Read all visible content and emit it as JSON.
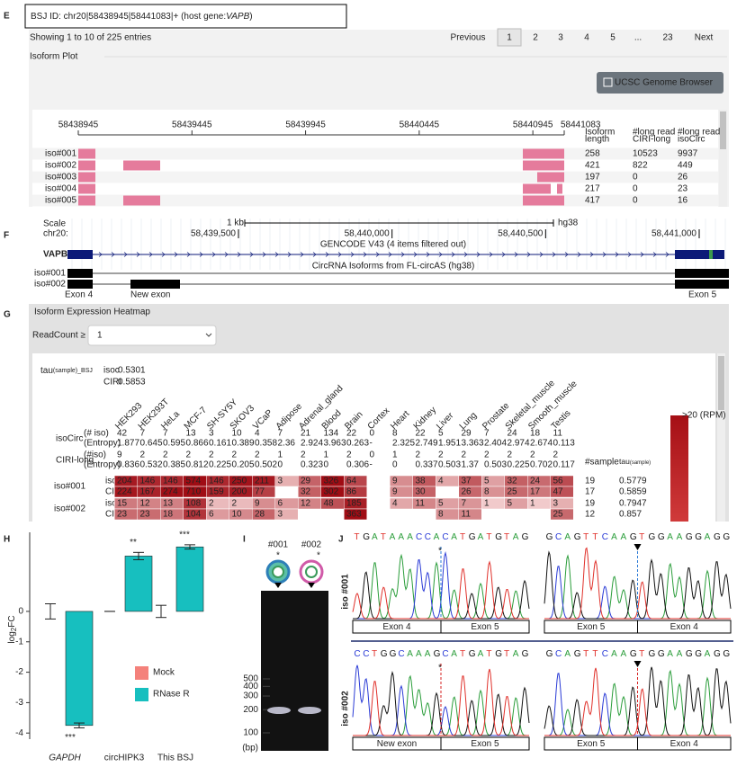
{
  "panel_labels": [
    "E",
    "F",
    "G",
    "H",
    "I",
    "J"
  ],
  "isoform_browser": {
    "bsj_id": [
      "BSJ ID: chr20|58438945|58441083|+ (host gene:",
      "VAPB",
      ")"
    ],
    "entries_info": "Showing 1 to 10 of 225 entries",
    "pagination": [
      "Previous",
      "1",
      "2",
      "3",
      "4",
      "5",
      "...",
      "23",
      "Next"
    ],
    "plot_title": "Isoform Plot",
    "ucsc_button": "UCSC Genome Browser",
    "axis_ticks": [
      58438945,
      58439445,
      58439945,
      58440445,
      58440945,
      58441083
    ],
    "columns": [
      [
        "Isoform",
        "length"
      ],
      [
        "#long read",
        "CIRI-long"
      ],
      [
        "#long read",
        "isoCirc"
      ]
    ],
    "rows": [
      {
        "name": "iso#001",
        "values": [
          258,
          10523,
          9937
        ]
      },
      {
        "name": "iso#002",
        "values": [
          421,
          822,
          449
        ]
      },
      {
        "name": "iso#003",
        "values": [
          197,
          0,
          26
        ]
      },
      {
        "name": "iso#004",
        "values": [
          217,
          0,
          23
        ]
      },
      {
        "name": "iso#005",
        "values": [
          417,
          0,
          16
        ]
      }
    ]
  },
  "ucsc": {
    "scale_label": "Scale",
    "scale_bar": "1 kb",
    "assembly": "hg38",
    "chrom": "chr20:",
    "positions": [
      {
        "value": 58439500,
        "label": "58,439,500"
      },
      {
        "value": 58440000,
        "label": "58,440,000"
      },
      {
        "value": 58440500,
        "label": "58,440,500"
      },
      {
        "value": 58441000,
        "label": "58,441,000"
      }
    ],
    "gencode": "GENCODE V43 (4 items filtered out)",
    "gene": "VAPB",
    "circ_track": "CircRNA Isoforms from FL-circAS (hg38)",
    "isoforms": [
      "iso#001",
      "iso#002"
    ],
    "exon_labels": [
      "Exon 4",
      "New exon",
      "Exon 5"
    ]
  },
  "heatmap": {
    "title": "Isoform Expression Heatmap",
    "filter_label": "ReadCount ≥",
    "filter_value": "1",
    "tau_label": [
      "tau",
      "(sample)_BSJ"
    ],
    "tau_bsj": [
      {
        "method": "isoc",
        "value": 0.5301
      },
      {
        "method": "CIRI",
        "value": 0.5853
      }
    ],
    "samples": [
      "HEK293",
      "HEK293T",
      "HeLa",
      "MCF-7",
      "SH-SY5Y",
      "SKOV3",
      "VCaP",
      "Adipose",
      "Adrenal_gland",
      "Blood",
      "Brain",
      "Cortex",
      "Heart",
      "Kidney",
      "Liver",
      "Lung",
      "Prostate",
      "Skeletal_muscle",
      "Smooth_muscle",
      "Testis"
    ],
    "summary": [
      {
        "name": "isoCirc",
        "rows": [
          {
            "label": "(# iso)",
            "values": [
              42,
              7,
              7,
              13,
              3,
              10,
              4,
              7,
              21,
              134,
              22,
              0,
              8,
              22,
              5,
              29,
              7,
              24,
              18,
              11
            ]
          },
          {
            "label": "(Entropy)",
            "values": [
              1.877,
              0.645,
              0.595,
              0.866,
              0.161,
              0.389,
              0.358,
              2.36,
              2.924,
              3.963,
              0.263,
              "-",
              2.325,
              2.749,
              1.951,
              3.363,
              2.404,
              2.974,
              2.674,
              0.113
            ]
          }
        ]
      },
      {
        "name": "CIRI-long",
        "rows": [
          {
            "label": "(#iso)",
            "values": [
              9,
              2,
              2,
              2,
              2,
              2,
              2,
              1,
              2,
              1,
              2,
              0,
              1,
              2,
              2,
              2,
              2,
              2,
              2,
              2
            ]
          },
          {
            "label": "(Entropy)",
            "values": [
              0.836,
              0.532,
              0.385,
              0.812,
              0.225,
              0.205,
              0.502,
              0,
              0.323,
              0,
              0.306,
              "-",
              0,
              0.337,
              0.503,
              1.37,
              0.503,
              0.225,
              0.702,
              0.117
            ]
          }
        ]
      }
    ],
    "sample_count_label": "#sample",
    "tau_sample_label": [
      "tau",
      "(sample)"
    ],
    "isoforms": [
      {
        "name": "iso#001",
        "rows": [
          {
            "method": "isoc",
            "values": [
              204,
              146,
              146,
              574,
              146,
              250,
              211,
              3,
              29,
              326,
              64,
              null,
              9,
              38,
              4,
              37,
              5,
              32,
              24,
              56
            ],
            "n_sample": 19,
            "tau": 0.5779
          },
          {
            "method": "CIRI",
            "values": [
              224,
              167,
              274,
              710,
              159,
              200,
              77,
              null,
              32,
              302,
              86,
              null,
              9,
              30,
              null,
              26,
              8,
              25,
              17,
              47
            ],
            "n_sample": 17,
            "tau": 0.5859
          }
        ]
      },
      {
        "name": "iso#002",
        "rows": [
          {
            "method": "isoc",
            "values": [
              15,
              12,
              13,
              108,
              2,
              2,
              9,
              6,
              12,
              48,
              185,
              null,
              4,
              11,
              5,
              7,
              1,
              5,
              1,
              3
            ],
            "n_sample": 19,
            "tau": 0.7947
          },
          {
            "method": "CIRI",
            "values": [
              23,
              23,
              18,
              104,
              6,
              10,
              28,
              3,
              null,
              null,
              363,
              null,
              null,
              null,
              8,
              11,
              null,
              null,
              null,
              25
            ],
            "n_sample": 12,
            "tau": 0.857
          }
        ]
      }
    ],
    "colorbar_label": ">20 (RPM)"
  },
  "chart_data": {
    "type": "bar",
    "ylabel": [
      "log",
      "2",
      "FC"
    ],
    "categories": [
      "GAPDH",
      "circHIPK3",
      "This BSJ"
    ],
    "series": [
      {
        "name": "Mock",
        "color": "#f4817b",
        "values": [
          0,
          0,
          0
        ],
        "errors": [
          0.25,
          0,
          0.2
        ]
      },
      {
        "name": "RNase R",
        "color": "#17bfbf",
        "values": [
          -3.75,
          1.82,
          2.12
        ],
        "errors": [
          0.08,
          0.12,
          0.07
        ]
      }
    ],
    "annotations": [
      "***",
      "**",
      "***"
    ],
    "ylim": [
      -4.2,
      2.6
    ],
    "yticks": [
      0,
      -1,
      -2,
      -3,
      -4
    ],
    "legend": "right"
  },
  "gel": {
    "lanes": [
      "#001",
      "#002"
    ],
    "stars": [
      "*",
      "*"
    ],
    "ladder": [
      500,
      400,
      300,
      200,
      100
    ],
    "unit": "(bp)"
  },
  "sanger": [
    {
      "label": "iso #001",
      "traces": [
        {
          "seq": "TGATAAACCACATGATGTAG",
          "marker": "*",
          "exons": [
            "Exon 4",
            "Exon 5"
          ]
        },
        {
          "seq": "GCAGTTCAAGTGGAAGGAGG",
          "exons": [
            "Exon 5",
            "Exon 4"
          ]
        }
      ]
    },
    {
      "label": "iso #002",
      "traces": [
        {
          "seq": "CCTGGCAAAGCATGATGTAG",
          "marker": "*",
          "exons": [
            "New exon",
            "Exon 5"
          ]
        },
        {
          "seq": "GCAGTTCAAGTGGAAGGAGG",
          "exons": [
            "Exon 5",
            "Exon 4"
          ]
        }
      ]
    }
  ]
}
